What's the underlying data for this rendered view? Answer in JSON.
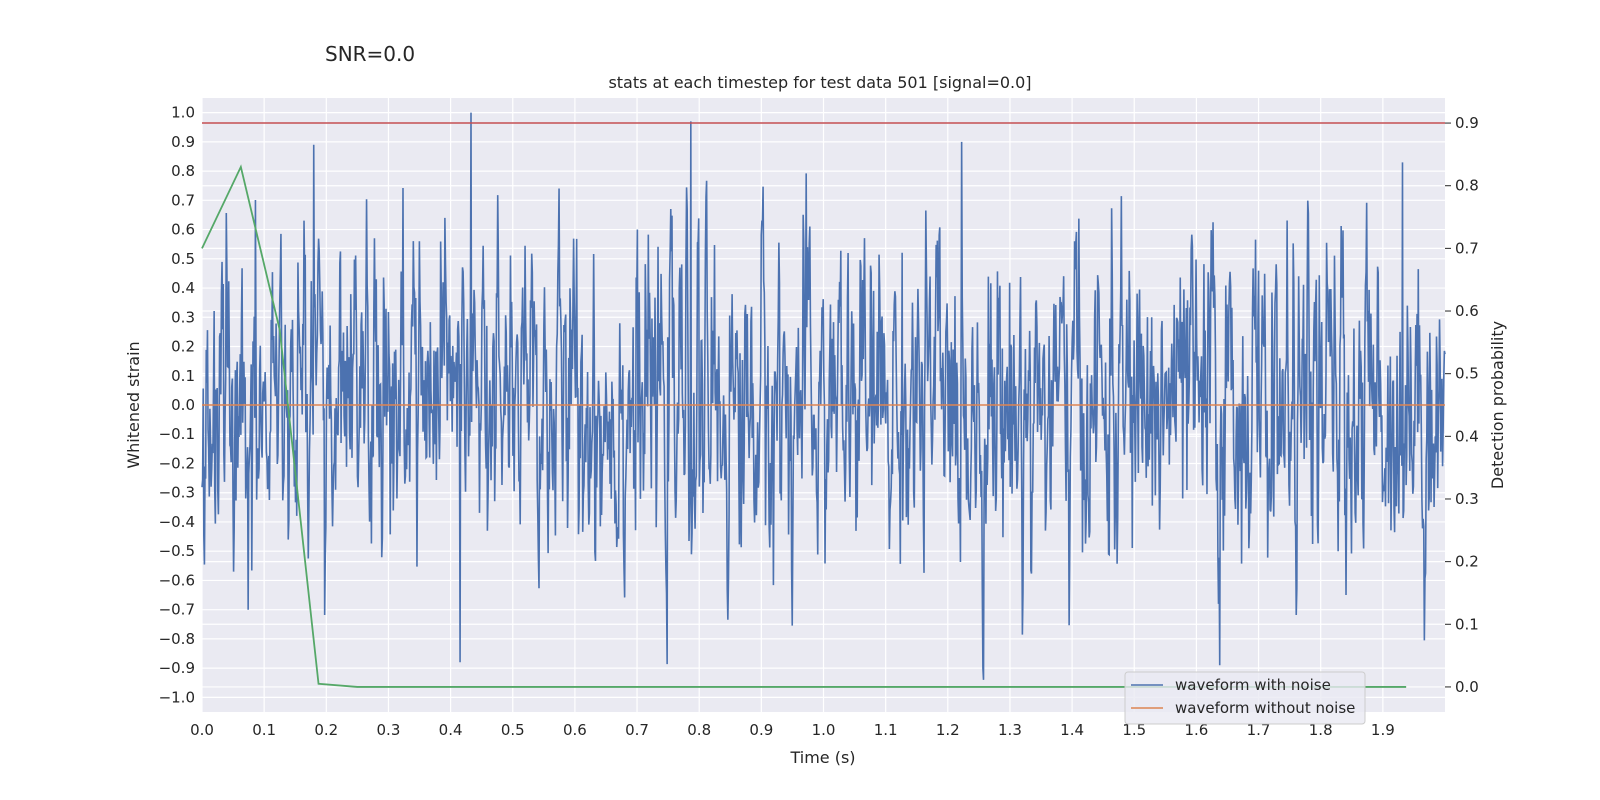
{
  "chart_data": {
    "type": "line",
    "suptitle": "SNR=0.0",
    "title": "stats at each timestep for test data 501 [signal=0.0]",
    "xlabel": "Time (s)",
    "ylabel": "Whitened strain",
    "ylabel_right": "Detection probability",
    "xlim": [
      0.0,
      2.0
    ],
    "ylim": [
      -1.05,
      1.05
    ],
    "ylim_right": [
      -0.04,
      0.94
    ],
    "x_ticks": [
      "0.0",
      "0.1",
      "0.2",
      "0.3",
      "0.4",
      "0.5",
      "0.6",
      "0.7",
      "0.8",
      "0.9",
      "1.0",
      "1.1",
      "1.2",
      "1.3",
      "1.4",
      "1.5",
      "1.6",
      "1.7",
      "1.8",
      "1.9"
    ],
    "y_ticks": [
      "1.0",
      "0.9",
      "0.8",
      "0.7",
      "0.6",
      "0.5",
      "0.4",
      "0.3",
      "0.2",
      "0.1",
      "0.0",
      "−0.1",
      "−0.2",
      "−0.3",
      "−0.4",
      "−0.5",
      "−0.6",
      "−0.7",
      "−0.8",
      "−0.9",
      "−1.0"
    ],
    "y_right_ticks": [
      "0.9",
      "0.8",
      "0.7",
      "0.6",
      "0.5",
      "0.4",
      "0.3",
      "0.2",
      "0.1",
      "0.0"
    ],
    "grid": true,
    "legend_position": "lower right",
    "colors": {
      "noise": "#4c72b0",
      "clean": "#dd8452",
      "prob": "#55a868",
      "threshold": "#c44e52",
      "background": "#eaeaf2",
      "grid": "#ffffff"
    },
    "series": [
      {
        "name": "waveform with noise",
        "axis": "left",
        "kind": "noise",
        "n_points": 2048,
        "approx_std": 0.27,
        "approx_range": [
          -0.95,
          1.0
        ],
        "peaks": [
          {
            "x": 0.433,
            "y": 1.0
          },
          {
            "x": 0.787,
            "y": 0.97
          },
          {
            "x": 0.18,
            "y": 0.89
          },
          {
            "x": 1.257,
            "y": -0.94
          },
          {
            "x": 1.638,
            "y": -0.89
          },
          {
            "x": 0.415,
            "y": -0.88
          },
          {
            "x": 1.932,
            "y": 0.83
          }
        ]
      },
      {
        "name": "waveform without noise",
        "axis": "left",
        "kind": "constant",
        "value": 0.0
      },
      {
        "axis": "right",
        "kind": "line",
        "x": [
          0.0,
          0.0625,
          0.125,
          0.1875,
          0.25,
          0.3125,
          1.9375
        ],
        "y": [
          0.7,
          0.83,
          0.57,
          0.005,
          0.0,
          0.0,
          0.0
        ]
      },
      {
        "axis": "right",
        "kind": "hline",
        "value": 0.9
      }
    ]
  }
}
